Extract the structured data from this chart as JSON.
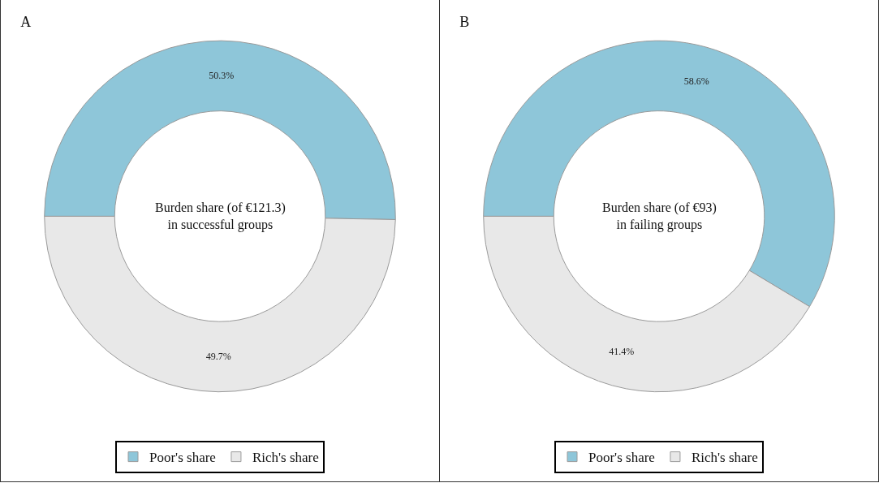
{
  "chart_data": [
    {
      "type": "donut",
      "title": "A",
      "categories": [
        "Poor's share",
        "Rich's share"
      ],
      "values": [
        50.3,
        49.7
      ],
      "value_labels": [
        "50.3%",
        "49.7%"
      ],
      "colors": [
        "#8ec6d9",
        "#e8e8e8"
      ],
      "annotations": [
        "Burden share (of €121.3)\nin successful groups"
      ],
      "legend": "bottom"
    },
    {
      "type": "donut",
      "title": "B",
      "categories": [
        "Poor's share",
        "Rich's share"
      ],
      "values": [
        58.6,
        41.4
      ],
      "value_labels": [
        "58.6%",
        "41.4%"
      ],
      "colors": [
        "#8ec6d9",
        "#e8e8e8"
      ],
      "annotations": [
        "Burden share (of €93)\nin failing groups"
      ],
      "legend": "bottom"
    }
  ]
}
